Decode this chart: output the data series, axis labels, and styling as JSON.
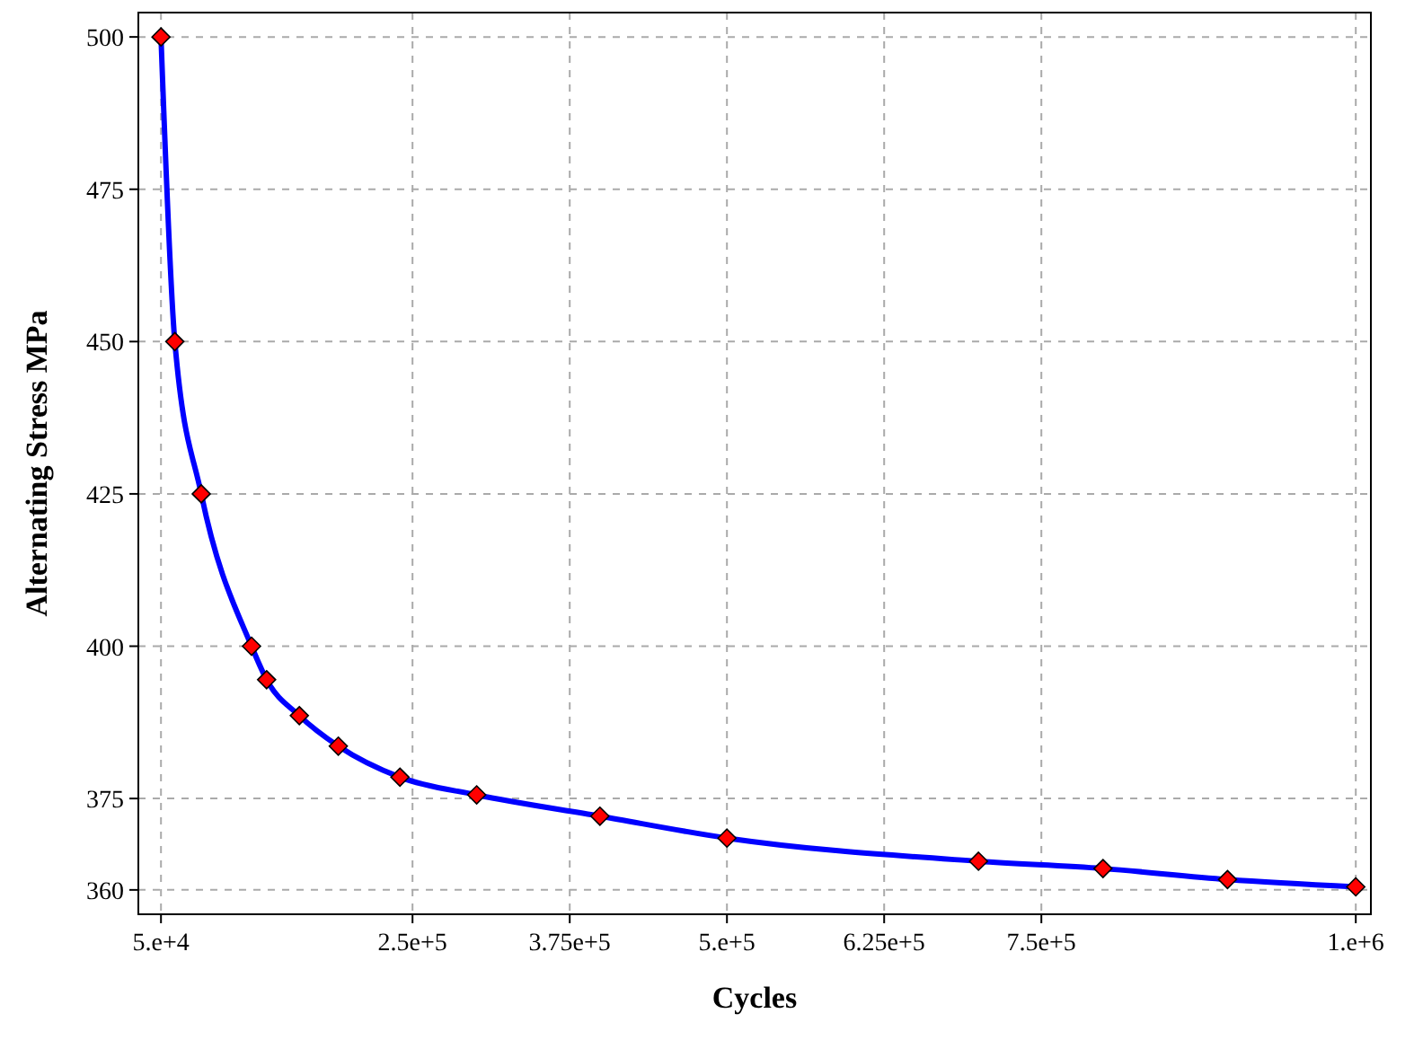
{
  "chart_data": {
    "type": "line",
    "xlabel": "Cycles",
    "ylabel": "Alternating Stress MPa",
    "x": [
      50000,
      61000,
      82000,
      122000,
      134000,
      160000,
      191000,
      240000,
      301000,
      399000,
      500000,
      700000,
      799000,
      898000,
      1000000
    ],
    "series": [
      {
        "color": "#0000ff",
        "values": [
          500,
          450,
          425,
          400,
          394.5,
          388.6,
          383.6,
          378.5,
          375.6,
          372.1,
          368.5,
          364.7,
          363.5,
          361.7,
          360.5
        ]
      }
    ],
    "xlim": [
      32000,
      1012000
    ],
    "ylim": [
      356,
      504
    ],
    "xticks": [
      {
        "value": 50000,
        "label": "5.e+4"
      },
      {
        "value": 250000,
        "label": "2.5e+5"
      },
      {
        "value": 375000,
        "label": "3.75e+5"
      },
      {
        "value": 500000,
        "label": "5.e+5"
      },
      {
        "value": 625000,
        "label": "6.25e+5"
      },
      {
        "value": 750000,
        "label": "7.5e+5"
      },
      {
        "value": 1000000,
        "label": "1.e+6"
      }
    ],
    "yticks": [
      360,
      375,
      400,
      425,
      450,
      475,
      500
    ],
    "grid": true,
    "marker": "diamond",
    "line_style": "solid"
  }
}
